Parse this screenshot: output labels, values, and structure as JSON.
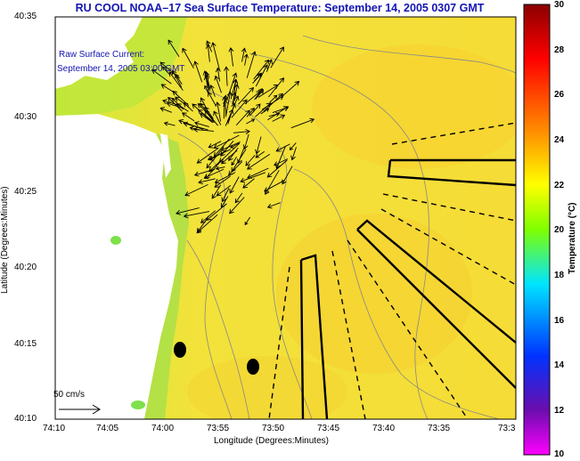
{
  "title": "RU COOL  NOAA–17  Sea Surface Temperature:  September 14, 2005 0307 GMT",
  "legend": {
    "line1": "Raw Surface Current:",
    "line2": "September 14, 2005 03:00 GMT"
  },
  "scale_label": "50 cm/s",
  "axes": {
    "ylabel": "Latitude (Degrees:Minutes)",
    "xlabel": "Longitude (Degrees:Minutes)",
    "yticks": [
      "40:35",
      "40:30",
      "40:25",
      "40:20",
      "40:15",
      "40:10"
    ],
    "xticks": [
      "74:10",
      "74:05",
      "74:00",
      "73:55",
      "73:50",
      "73:45",
      "73:40",
      "73:35",
      "73:3"
    ]
  },
  "colorbar": {
    "title": "Temperature (°C)",
    "ticks": [
      "30",
      "28",
      "26",
      "24",
      "22",
      "20",
      "18",
      "16",
      "14",
      "12",
      "10"
    ],
    "colors": {
      "top": "#8b0000",
      "red": "#ff0000",
      "orange": "#ff8c00",
      "yellow": "#ffff00",
      "green": "#7fff00",
      "cyan": "#00e5ff",
      "blue": "#0033ff",
      "purple": "#6a0dad",
      "magenta": "#ff00ff"
    }
  },
  "map_colors": {
    "water": "#f3e23a",
    "warm_water": "#f6d12e",
    "cool_water": "#c8e83a",
    "land": "#ffffff"
  }
}
